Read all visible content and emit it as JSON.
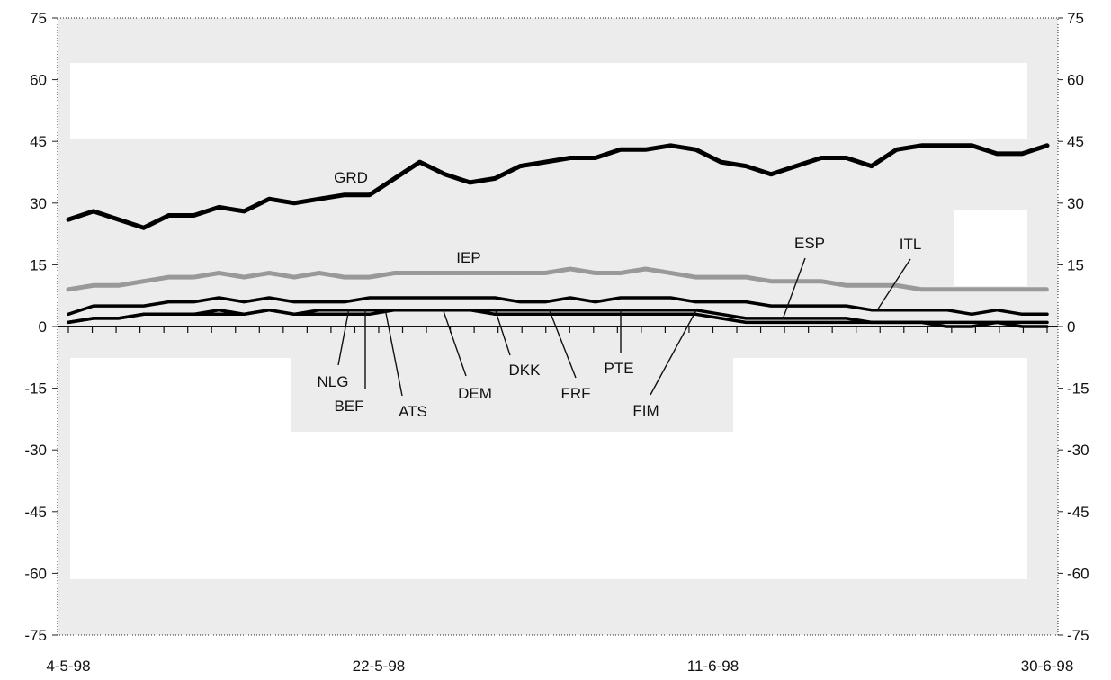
{
  "chart_data": {
    "type": "line",
    "title": "",
    "xlabel": "",
    "ylabel": "",
    "ylim": [
      -75,
      75
    ],
    "yticks": [
      75,
      60,
      45,
      30,
      15,
      0,
      -15,
      -30,
      -45,
      -60,
      -75
    ],
    "ytick_labels": [
      "75",
      "60",
      "45",
      "30",
      "15",
      "0",
      "-15",
      "-30",
      "-45",
      "-60",
      "-75"
    ],
    "x_tick_labels": [
      "4-5-98",
      "22-5-98",
      "11-6-98",
      "30-6-98"
    ],
    "x_tick_label_index": [
      0,
      13,
      27,
      41
    ],
    "grid": false,
    "legend": "none; series are labelled directly on the plot",
    "series": [
      {
        "name": "GRD",
        "color": "#000000",
        "values": [
          26,
          28,
          26,
          24,
          27,
          27,
          29,
          28,
          31,
          30,
          31,
          32,
          32,
          36,
          40,
          37,
          35,
          36,
          39,
          40,
          41,
          41,
          43,
          43,
          44,
          43,
          40,
          39,
          37,
          39,
          41,
          41,
          39,
          43,
          44,
          44,
          44,
          42,
          42,
          44
        ]
      },
      {
        "name": "IEP",
        "color": "#999999",
        "values": [
          9,
          10,
          10,
          11,
          12,
          12,
          13,
          12,
          13,
          12,
          13,
          12,
          12,
          13,
          13,
          13,
          13,
          13,
          13,
          13,
          14,
          13,
          13,
          14,
          13,
          12,
          12,
          12,
          11,
          11,
          11,
          10,
          10,
          10,
          9,
          9,
          9,
          9,
          9,
          9
        ]
      },
      {
        "name": "ITL",
        "color": "#000000",
        "values": [
          3,
          5,
          5,
          5,
          6,
          6,
          7,
          6,
          7,
          6,
          6,
          6,
          7,
          7,
          7,
          7,
          7,
          7,
          6,
          6,
          7,
          6,
          7,
          7,
          7,
          6,
          6,
          6,
          5,
          5,
          5,
          5,
          4,
          4,
          4,
          4,
          3,
          4,
          3,
          3
        ]
      },
      {
        "name": "ESP",
        "color": "#000000",
        "values": [
          1,
          2,
          2,
          3,
          3,
          3,
          4,
          3,
          4,
          3,
          4,
          4,
          4,
          4,
          4,
          4,
          4,
          4,
          4,
          4,
          4,
          4,
          4,
          4,
          4,
          4,
          3,
          2,
          2,
          2,
          2,
          2,
          1,
          1,
          1,
          1,
          1,
          1,
          1,
          1
        ]
      },
      {
        "name": "NLG",
        "color": "#000000",
        "values": [
          1,
          2,
          2,
          3,
          3,
          3,
          3,
          3,
          4,
          3,
          3,
          3,
          3,
          4,
          4,
          4,
          4,
          3,
          3,
          3,
          3,
          3,
          3,
          3,
          3,
          3,
          2,
          1,
          1,
          1,
          1,
          1,
          1,
          1,
          1,
          0,
          0,
          1,
          0,
          0
        ]
      }
    ],
    "annotations": [
      "GRD",
      "IEP",
      "ESP",
      "ITL",
      "NLG",
      "BEF",
      "ATS",
      "DEM",
      "DKK",
      "FRF",
      "PTE",
      "FIM"
    ]
  }
}
